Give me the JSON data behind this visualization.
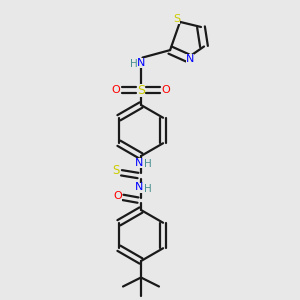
{
  "bg_color": "#e8e8e8",
  "line_color": "#1a1a1a",
  "bond_width": 1.6,
  "figsize": [
    3.0,
    3.0
  ],
  "dpi": 100,
  "colors": {
    "S": "#cccc00",
    "N": "#0000ff",
    "O": "#ff0000",
    "H": "#4a9090",
    "C_text": "#1a1a1a"
  },
  "font_size": 7.5
}
